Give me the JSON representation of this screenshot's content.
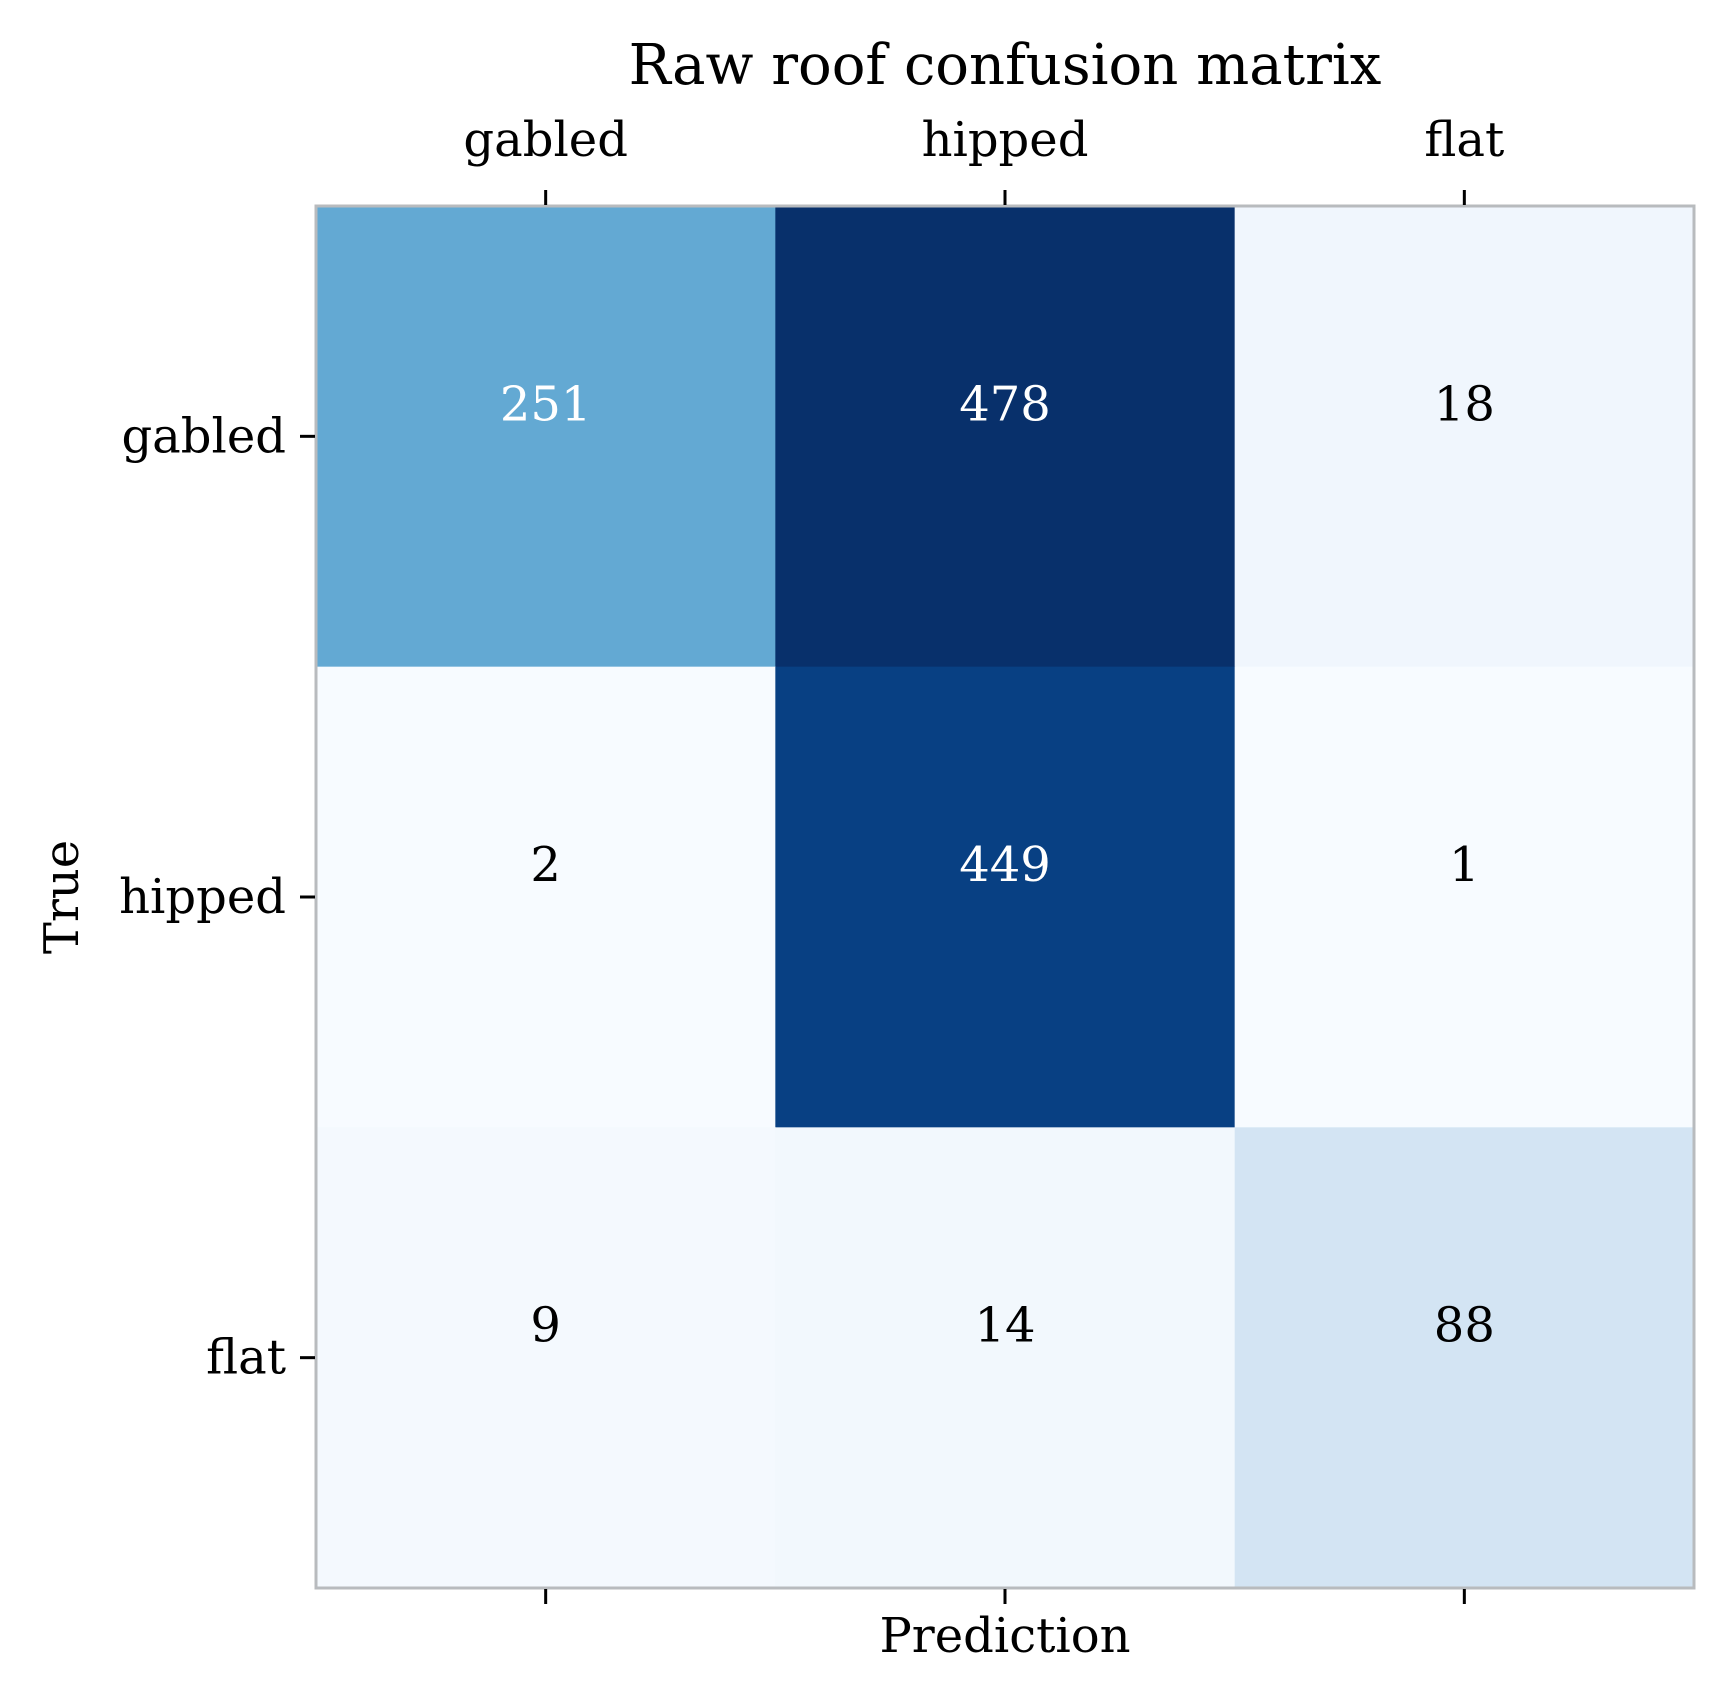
{
  "chart_data": {
    "type": "heatmap",
    "title": "Raw roof confusion matrix",
    "xlabel": "Prediction",
    "ylabel": "True",
    "x_categories": [
      "gabled",
      "hipped",
      "flat"
    ],
    "y_categories": [
      "gabled",
      "hipped",
      "flat"
    ],
    "values": [
      [
        251,
        478,
        18
      ],
      [
        2,
        449,
        1
      ],
      [
        9,
        14,
        88
      ]
    ],
    "colormap": "Blues",
    "x_tick_position": "top"
  }
}
